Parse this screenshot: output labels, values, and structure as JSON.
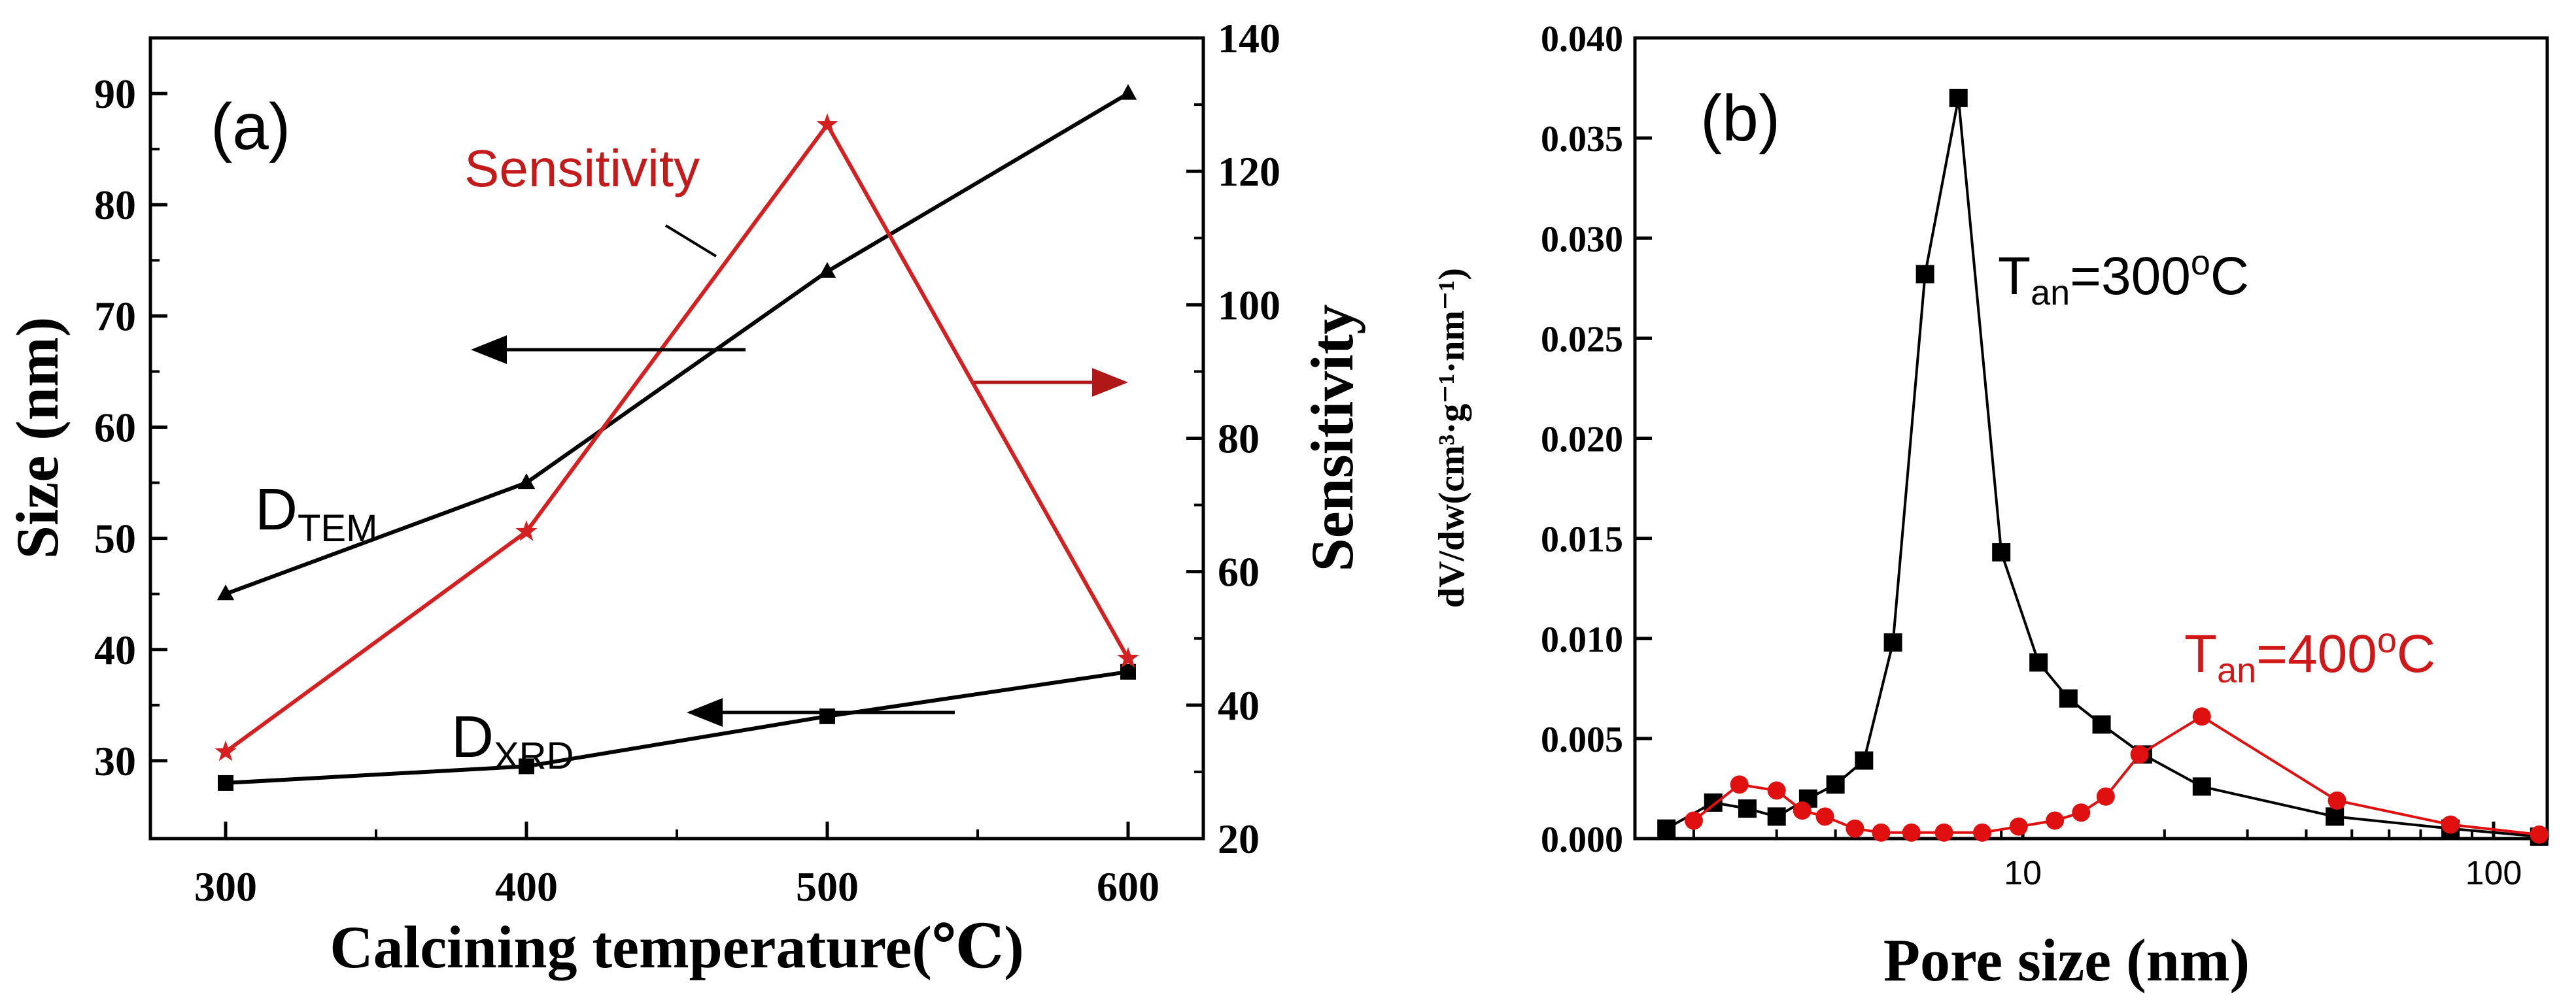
{
  "chart_data": [
    {
      "panel_label": "(a)",
      "type": "line",
      "xlabel": "Calcining temperature(℃)",
      "ylabel": "Size (nm)",
      "y2label": "Sensitivity",
      "x": [
        300,
        400,
        500,
        600
      ],
      "xlim": [
        275,
        625
      ],
      "ylim": [
        23,
        95
      ],
      "y2lim": [
        20,
        140
      ],
      "xticks": [
        300,
        400,
        500,
        600
      ],
      "yticks": [
        30,
        40,
        50,
        60,
        70,
        80,
        90
      ],
      "y2ticks": [
        20,
        40,
        60,
        80,
        100,
        120,
        140
      ],
      "series": [
        {
          "name": "D_TEM",
          "axis": "left",
          "marker": "triangle",
          "color": "#000000",
          "values": [
            45,
            55,
            74,
            90
          ]
        },
        {
          "name": "D_XRD",
          "axis": "left",
          "marker": "square",
          "color": "#000000",
          "values": [
            28,
            29.5,
            34,
            38
          ]
        },
        {
          "name": "Sensitivity",
          "axis": "right",
          "marker": "star",
          "color": "#d42020",
          "values": [
            33,
            66,
            127,
            47
          ]
        }
      ],
      "annotations": {
        "sensitivity": "Sensitivity",
        "dtem_main": "D",
        "dtem_sub": "TEM",
        "dxrd_main": "D",
        "dxrd_sub": "XRD"
      }
    },
    {
      "panel_label": "(b)",
      "type": "line",
      "xscale": "log",
      "xlabel": "Pore size (nm)",
      "ylabel": "dV/dw(cm³·g⁻¹·nm⁻¹)",
      "xlim": [
        1.5,
        130
      ],
      "ylim": [
        0,
        0.04
      ],
      "xticks": [
        10,
        100
      ],
      "xtick_labels": [
        "10",
        "100"
      ],
      "yticks": [
        0,
        0.005,
        0.01,
        0.015,
        0.02,
        0.025,
        0.03,
        0.035,
        0.04
      ],
      "ytick_labels": [
        "0.000",
        "0.005",
        "0.010",
        "0.015",
        "0.020",
        "0.025",
        "0.030",
        "0.035",
        "0.040"
      ],
      "series": [
        {
          "name": "T_an=300oC",
          "marker": "square",
          "color": "#000000",
          "x": [
            1.75,
            2.2,
            2.6,
            3.0,
            3.5,
            4.0,
            4.6,
            5.3,
            6.2,
            7.3,
            9.0,
            10.8,
            12.5,
            14.7,
            18.0,
            24.0,
            46.0,
            81.0,
            125.0
          ],
          "y": [
            0.0005,
            0.0018,
            0.0015,
            0.0011,
            0.002,
            0.0027,
            0.0039,
            0.0098,
            0.0282,
            0.037,
            0.0143,
            0.0088,
            0.007,
            0.0057,
            0.0042,
            0.0026,
            0.0011,
            0.0005,
            0.0001
          ]
        },
        {
          "name": "T_an=400oC",
          "marker": "circle",
          "color": "#e01010",
          "x": [
            2.0,
            2.5,
            3.0,
            3.4,
            3.8,
            4.4,
            5.0,
            5.8,
            6.8,
            8.2,
            9.8,
            11.7,
            13.3,
            15.0,
            17.7,
            24.0,
            46.5,
            81.0,
            125.0
          ],
          "y": [
            0.0009,
            0.0027,
            0.0024,
            0.0014,
            0.0011,
            0.0005,
            0.0003,
            0.0003,
            0.0003,
            0.0003,
            0.0006,
            0.0009,
            0.0013,
            0.0021,
            0.0042,
            0.0061,
            0.0019,
            0.0007,
            0.0002
          ]
        }
      ],
      "annotations": {
        "t300_main": "T",
        "t300_sub": "an",
        "t300_rest": "=300",
        "t300_sup": "o",
        "t300_unit": "C",
        "t400_main": "T",
        "t400_sub": "an",
        "t400_rest": "=400",
        "t400_sup": "o",
        "t400_unit": "C"
      }
    }
  ]
}
